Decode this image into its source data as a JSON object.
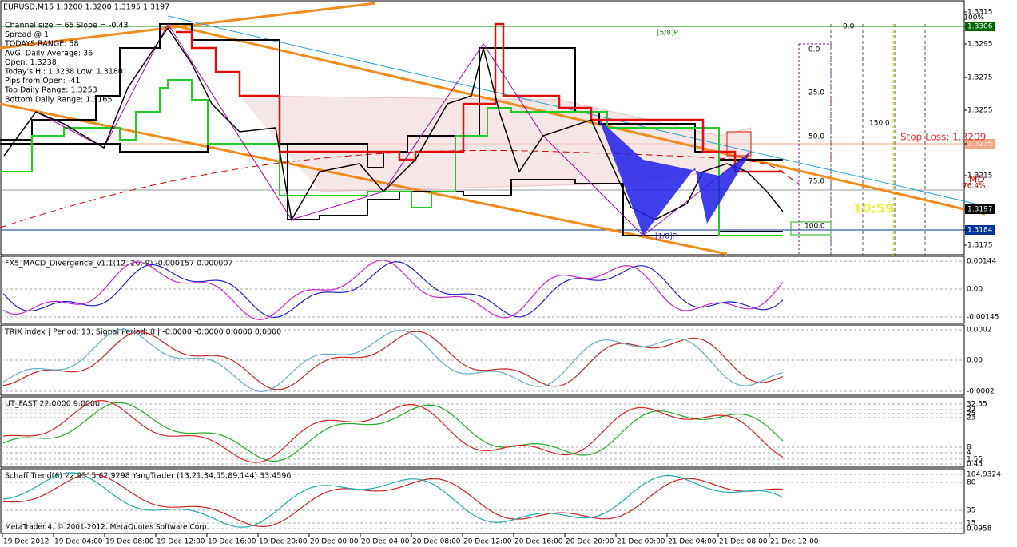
{
  "header": "EURUSD,M15  1.3200 1.3200 1.3195 1.3197",
  "info_lines": [
    "Channel size = 65 Slope = -0.43",
    "Spread @ 1",
    "TODAYS RANGE: 58",
    "AVG. Daily Average: 36",
    "Open: 1.3238",
    "Today's Hi: 1.3238  Low: 1.3180",
    "Pips from Open: -41",
    "Top Daily Range: 1.3253",
    "Bottom Daily Range: 1.3165"
  ],
  "price_axis": [
    "1.3315",
    "1.3295",
    "1.3275",
    "1.3255",
    "1.3235",
    "1.3215",
    "1.3197",
    "1.3184",
    "1.3175",
    "1.3306"
  ],
  "annotations": {
    "top_percent": "100%",
    "murrey": "[5/8]P",
    "fib_levels": [
      "0.0",
      "25.0",
      "50.0",
      "75.0",
      "100.0"
    ],
    "level_150": "150.0",
    "level_0": "0.0",
    "stop_loss": "Stop Loss: 1.3209",
    "md": "MD",
    "fib_764": "76.4%",
    "timer": "10:59",
    "bottom_label": "[1/8]P"
  },
  "panels": [
    {
      "title": "FX5_MACD_Divergence_v1.1(12, 26, 9) -0.000157 0.000007",
      "scale": [
        "0.00144",
        "0.00",
        "-0.00145"
      ]
    },
    {
      "title": "TRIX index | Period: 13, Signal Period: 8 |  -0.0000 -0.0000 0.0000 0.0000",
      "scale": [
        "0.0002",
        "0.00",
        "-0.0002"
      ]
    },
    {
      "title": "UT_FAST 22.0000 9.0000",
      "scale": [
        "32.55",
        "27",
        "25",
        "23",
        "8",
        "4",
        "1.55",
        "0.45"
      ]
    },
    {
      "title": "Schaff Trend(6) 22.9515 62.9298  YangTrader (13,21,34,55,89,144) 33.4596",
      "scale": [
        "104.9324",
        "80",
        "35",
        "15",
        "0.0958"
      ]
    }
  ],
  "copyright": "MetaTrader 4, © 2001-2012, MetaQuotes Software Corp.",
  "time_axis": [
    "19 Dec 2012",
    "19 Dec 04:00",
    "19 Dec 08:00",
    "19 Dec 12:00",
    "19 Dec 16:00",
    "19 Dec 20:00",
    "20 Dec 00:00",
    "20 Dec 04:00",
    "20 Dec 08:00",
    "20 Dec 12:00",
    "20 Dec 16:00",
    "20 Dec 20:00",
    "21 Dec 00:00",
    "21 Dec 04:00",
    "21 Dec 08:00",
    "21 Dec 12:00"
  ]
}
